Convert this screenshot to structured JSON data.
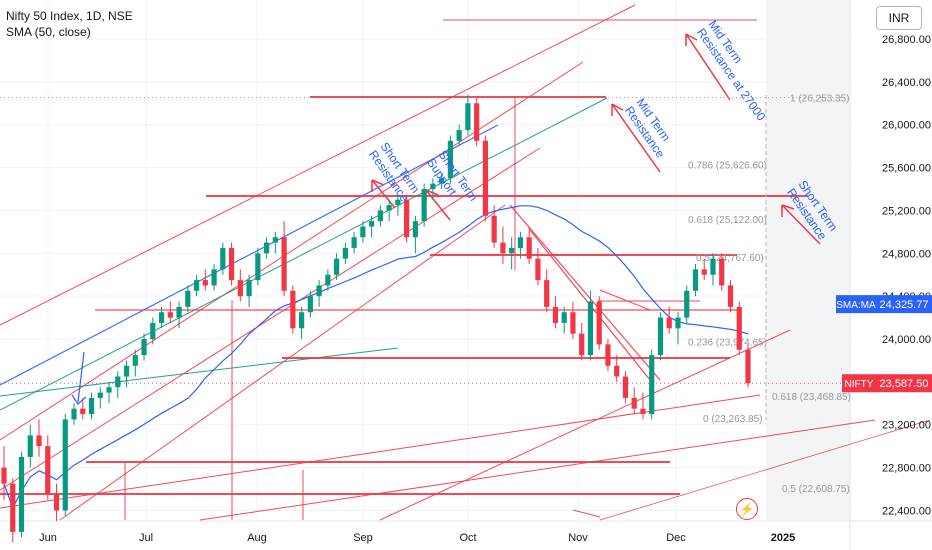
{
  "header": {
    "title": "Nifty 50 Index, 1D, NSE",
    "indicator": "SMA (50, close)"
  },
  "price_axis": {
    "unit": "INR",
    "ticks": [
      "26,800.00",
      "26,400.00",
      "26,000.00",
      "25,600.00",
      "25,200.00",
      "24,800.00",
      "24,400.00",
      "24,000.00",
      "23,600.00",
      "23,200.00",
      "22,800.00",
      "22,400.00"
    ]
  },
  "time_axis": {
    "labels": [
      "Jun",
      "Jul",
      "Aug",
      "Sep",
      "Oct",
      "Nov",
      "Dec",
      "2025"
    ]
  },
  "price_badges": {
    "sma_label": "SMA:MA",
    "sma_value": "24,325.77",
    "symbol_label": "NIFTY",
    "symbol_value": "23,587.50"
  },
  "fib_levels": [
    {
      "text": "1 (26,253.35)",
      "value": 26253.35
    },
    {
      "text": "0.786 (25,626.60)",
      "value": 25626.6
    },
    {
      "text": "0.618 (25,122.00)",
      "value": 25122.0
    },
    {
      "text": "0.5 (24,767.60)",
      "value": 24767.6
    },
    {
      "text": "0.236 (23,974.65)",
      "value": 23974.65
    },
    {
      "text": "0.618 (23,468.85)",
      "value": 23468.85
    },
    {
      "text": "0 (23,263.85)",
      "value": 23263.85
    },
    {
      "text": "0.5 (22,608.75)",
      "value": 22608.75
    }
  ],
  "annotations": {
    "mid_term_resistance_27000": "Mid Term Resistance at 27000",
    "mid_term_resistance": "Mid Term Resistance",
    "short_term_resistance_sep": "Short Term Resistance",
    "short_term_support": "Short Term Support",
    "short_term_resistance_right": "Short Term Resistance"
  },
  "chart_data": {
    "type": "candlestick",
    "title": "Nifty 50 Index, 1D, NSE",
    "indicator": "SMA (50, close)",
    "ylim": [
      22200,
      27100
    ],
    "y_unit": "INR",
    "last_close": 23587.5,
    "sma_last": 24325.77,
    "ohlc_approx": [
      [
        22800,
        23000,
        22500,
        22650
      ],
      [
        22650,
        22700,
        22100,
        22200
      ],
      [
        22200,
        22950,
        22150,
        22900
      ],
      [
        22900,
        23200,
        22800,
        23100
      ],
      [
        23100,
        23250,
        22900,
        23000
      ],
      [
        23000,
        23100,
        22500,
        22550
      ],
      [
        22550,
        22650,
        22300,
        22400
      ],
      [
        22400,
        23300,
        22350,
        23250
      ],
      [
        23250,
        23400,
        23200,
        23350
      ],
      [
        23350,
        23450,
        23250,
        23300
      ],
      [
        23300,
        23500,
        23250,
        23450
      ],
      [
        23450,
        23550,
        23350,
        23500
      ],
      [
        23500,
        23600,
        23400,
        23550
      ],
      [
        23550,
        23700,
        23450,
        23650
      ],
      [
        23650,
        23800,
        23550,
        23750
      ],
      [
        23750,
        23900,
        23650,
        23850
      ],
      [
        23850,
        24050,
        23800,
        24000
      ],
      [
        24000,
        24200,
        23950,
        24150
      ],
      [
        24150,
        24300,
        24100,
        24250
      ],
      [
        24250,
        24350,
        24150,
        24200
      ],
      [
        24200,
        24350,
        24100,
        24300
      ],
      [
        24300,
        24500,
        24250,
        24450
      ],
      [
        24450,
        24600,
        24400,
        24550
      ],
      [
        24550,
        24650,
        24450,
        24500
      ],
      [
        24500,
        24700,
        24450,
        24650
      ],
      [
        24650,
        24900,
        24600,
        24850
      ],
      [
        24850,
        24900,
        24500,
        24550
      ],
      [
        24550,
        24650,
        24350,
        24400
      ],
      [
        24400,
        24600,
        24300,
        24550
      ],
      [
        24550,
        24850,
        24500,
        24800
      ],
      [
        24800,
        24950,
        24750,
        24900
      ],
      [
        24900,
        25000,
        24800,
        24950
      ],
      [
        24950,
        25100,
        24400,
        24450
      ],
      [
        24450,
        24500,
        24050,
        24100
      ],
      [
        24100,
        24300,
        24000,
        24250
      ],
      [
        24250,
        24450,
        24200,
        24400
      ],
      [
        24400,
        24550,
        24300,
        24500
      ],
      [
        24500,
        24650,
        24450,
        24600
      ],
      [
        24600,
        24800,
        24550,
        24750
      ],
      [
        24750,
        24900,
        24700,
        24850
      ],
      [
        24850,
        25000,
        24800,
        24950
      ],
      [
        24950,
        25100,
        24900,
        25050
      ],
      [
        25050,
        25150,
        24950,
        25100
      ],
      [
        25100,
        25250,
        25050,
        25200
      ],
      [
        25200,
        25300,
        25100,
        25250
      ],
      [
        25250,
        25350,
        25150,
        25300
      ],
      [
        25300,
        25350,
        24900,
        24950
      ],
      [
        24950,
        25150,
        24800,
        25100
      ],
      [
        25100,
        25450,
        25050,
        25400
      ],
      [
        25400,
        25500,
        25300,
        25450
      ],
      [
        25450,
        25550,
        25400,
        25500
      ],
      [
        25500,
        25900,
        25450,
        25850
      ],
      [
        25850,
        26000,
        25800,
        25950
      ],
      [
        25950,
        26280,
        25900,
        26200
      ],
      [
        26200,
        26250,
        25800,
        25850
      ],
      [
        25850,
        25900,
        25100,
        25150
      ],
      [
        25150,
        25250,
        24850,
        24900
      ],
      [
        24900,
        25050,
        24700,
        24800
      ],
      [
        24800,
        24950,
        24650,
        24850
      ],
      [
        24850,
        25000,
        24750,
        24950
      ],
      [
        24950,
        25050,
        24700,
        24750
      ],
      [
        24750,
        24850,
        24500,
        24550
      ],
      [
        24550,
        24650,
        24250,
        24300
      ],
      [
        24300,
        24400,
        24100,
        24150
      ],
      [
        24150,
        24300,
        24050,
        24250
      ],
      [
        24250,
        24350,
        24000,
        24050
      ],
      [
        24050,
        24150,
        23800,
        23850
      ],
      [
        23850,
        24450,
        23800,
        24350
      ],
      [
        24350,
        24400,
        23900,
        23950
      ],
      [
        23950,
        24000,
        23700,
        23750
      ],
      [
        23750,
        23850,
        23600,
        23650
      ],
      [
        23650,
        23700,
        23400,
        23450
      ],
      [
        23450,
        23550,
        23300,
        23350
      ],
      [
        23350,
        23500,
        23250,
        23300
      ],
      [
        23300,
        23900,
        23250,
        23850
      ],
      [
        23850,
        24250,
        23800,
        24200
      ],
      [
        24200,
        24300,
        24050,
        24100
      ],
      [
        24100,
        24250,
        23950,
        24200
      ],
      [
        24200,
        24500,
        24150,
        24450
      ],
      [
        24450,
        24700,
        24400,
        24650
      ],
      [
        24650,
        24750,
        24550,
        24600
      ],
      [
        24600,
        24800,
        24500,
        24750
      ],
      [
        24750,
        24800,
        24450,
        24500
      ],
      [
        24500,
        24550,
        24250,
        24300
      ],
      [
        24300,
        24350,
        23850,
        23900
      ],
      [
        23900,
        23950,
        23550,
        23587.5
      ]
    ]
  }
}
